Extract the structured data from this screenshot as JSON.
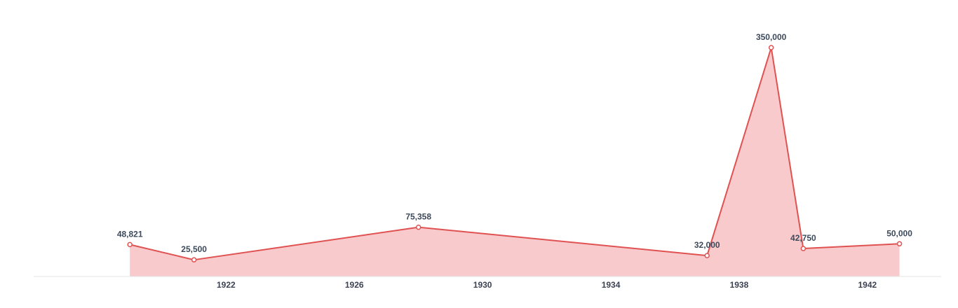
{
  "chart_data": {
    "type": "area",
    "title": "",
    "xlabel": "",
    "ylabel": "",
    "x": [
      1919,
      1921,
      1928,
      1937,
      1939,
      1940,
      1943
    ],
    "data_labels": [
      "48,821",
      "25,500",
      "75,358",
      "32,000",
      "350,000",
      "42,750",
      "50,000"
    ],
    "series": [
      {
        "values": [
          48821,
          25500,
          75358,
          32000,
          350000,
          42750,
          50000
        ]
      }
    ],
    "x_ticks": [
      1922,
      1926,
      1930,
      1934,
      1938,
      1942
    ],
    "x_tick_labels": [
      "1922",
      "1926",
      "1930",
      "1934",
      "1938",
      "1942"
    ],
    "xlim": [
      1916,
      1944.3
    ],
    "ylim": [
      0,
      380000
    ],
    "grid": false,
    "legend": "none",
    "colors": {
      "line": "#e05252",
      "fill": "#f8cacc",
      "marker_fill": "#ffffff",
      "axis": "#e6e6e6",
      "tick_text": "#3b4252",
      "label_text": "#3d4a5c"
    }
  }
}
